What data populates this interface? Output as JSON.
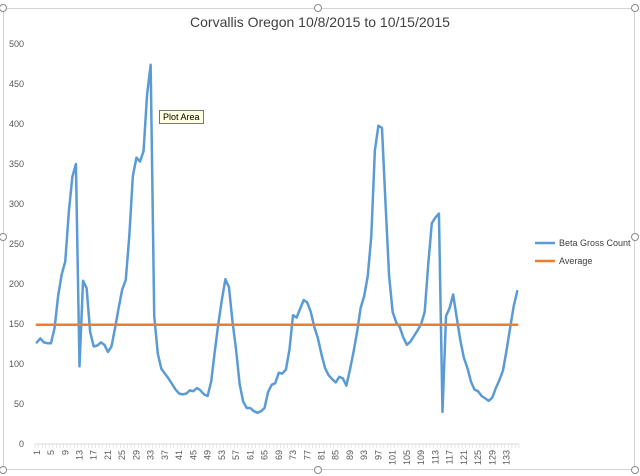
{
  "chart_data": {
    "type": "line",
    "title": "Corvallis Oregon 10/8/2015 to 10/15/2015",
    "xlabel": "",
    "ylabel": "",
    "ylim": [
      0,
      500
    ],
    "yticks": [
      0,
      50,
      100,
      150,
      200,
      250,
      300,
      350,
      400,
      450,
      500
    ],
    "x_tick_labels": [
      "1",
      "5",
      "9",
      "13",
      "17",
      "21",
      "25",
      "29",
      "33",
      "37",
      "41",
      "45",
      "49",
      "53",
      "57",
      "61",
      "65",
      "69",
      "73",
      "77",
      "81",
      "85",
      "89",
      "93",
      "97",
      "101",
      "105",
      "109",
      "113",
      "117",
      "121",
      "125",
      "129",
      "133"
    ],
    "grid": false,
    "legend_position": "right",
    "series": [
      {
        "name": "Beta Gross Count",
        "color": "#5b9bd5",
        "values": [
          127,
          132,
          127,
          126,
          126,
          145,
          185,
          212,
          228,
          290,
          334,
          350,
          97,
          204,
          195,
          140,
          122,
          123,
          127,
          124,
          115,
          122,
          145,
          170,
          193,
          205,
          260,
          335,
          358,
          353,
          366,
          437,
          474,
          160,
          113,
          94,
          88,
          82,
          75,
          68,
          63,
          62,
          63,
          67,
          66,
          70,
          67,
          62,
          60,
          78,
          115,
          150,
          180,
          206,
          196,
          153,
          118,
          75,
          53,
          45,
          45,
          41,
          39,
          41,
          45,
          65,
          74,
          76,
          89,
          88,
          93,
          118,
          161,
          158,
          169,
          180,
          177,
          165,
          146,
          132,
          112,
          95,
          86,
          81,
          77,
          84,
          82,
          73,
          93,
          115,
          140,
          170,
          185,
          210,
          260,
          367,
          398,
          395,
          300,
          210,
          165,
          152,
          146,
          133,
          124,
          128,
          135,
          142,
          150,
          165,
          225,
          276,
          283,
          288,
          40,
          160,
          170,
          187,
          158,
          130,
          108,
          95,
          78,
          68,
          66,
          60,
          57,
          54,
          58,
          70,
          80,
          92,
          117,
          145,
          172,
          191
        ]
      },
      {
        "name": "Average",
        "color": "#ed7d31",
        "values": [
          149
        ]
      }
    ]
  },
  "tooltip": {
    "label": "Plot Area"
  },
  "style": {
    "axis_color": "#d9d9d9",
    "frame_color": "#d4d4d4"
  }
}
